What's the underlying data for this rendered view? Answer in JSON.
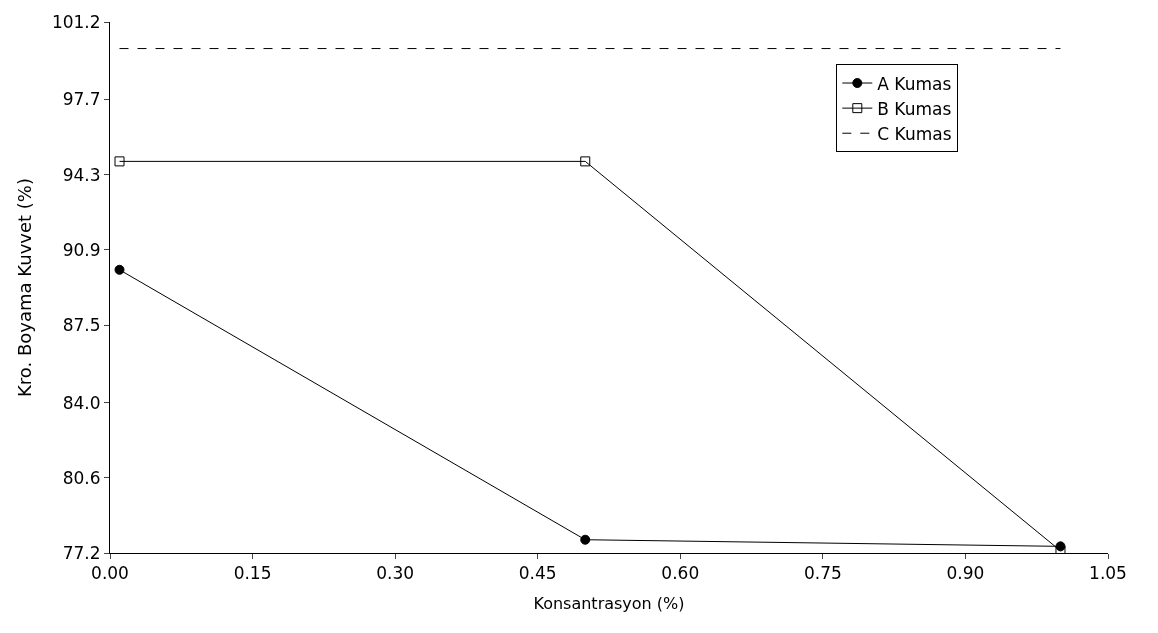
{
  "chart_data": {
    "type": "line",
    "xlabel": "Konsantrasyon (%)",
    "ylabel": "Kro. Boyama Kuvvet (%)",
    "series": [
      {
        "name": "A Kumas",
        "color": "#000000",
        "x": [
          0.01,
          0.5,
          1.0
        ],
        "values": [
          90.0,
          77.8,
          77.5
        ],
        "marker": "circle",
        "line_style": "solid"
      },
      {
        "name": "B Kumas",
        "color": "#000000",
        "x": [
          0.01,
          0.5,
          1.0
        ],
        "values": [
          94.9,
          94.9,
          77.3
        ],
        "marker": "square",
        "line_style": "solid"
      },
      {
        "name": "C Kumas",
        "color": "#000000",
        "x": [
          0.01,
          1.0
        ],
        "values": [
          100.0,
          100.0
        ],
        "marker": "none",
        "line_style": "dashed"
      }
    ],
    "xlim": [
      0,
      1.05
    ],
    "xticks": [
      {
        "value": 0,
        "label": "0.00"
      },
      {
        "value": 0.15,
        "label": "0.15"
      },
      {
        "value": 0.3,
        "label": "0.30"
      },
      {
        "value": 0.45,
        "label": "0.45"
      },
      {
        "value": 0.6,
        "label": "0.60"
      },
      {
        "value": 0.75,
        "label": "0.75"
      },
      {
        "value": 0.9,
        "label": "0.90"
      },
      {
        "value": 1.05,
        "label": "1.05"
      }
    ],
    "ylim": [
      77.2,
      101.2
    ],
    "yticks": [
      77.2,
      80.6,
      {
        "value": 84.0,
        "label": "84.0"
      },
      87.5,
      90.9,
      94.3,
      97.7,
      101.2
    ],
    "grid": false,
    "legend": "top right"
  }
}
